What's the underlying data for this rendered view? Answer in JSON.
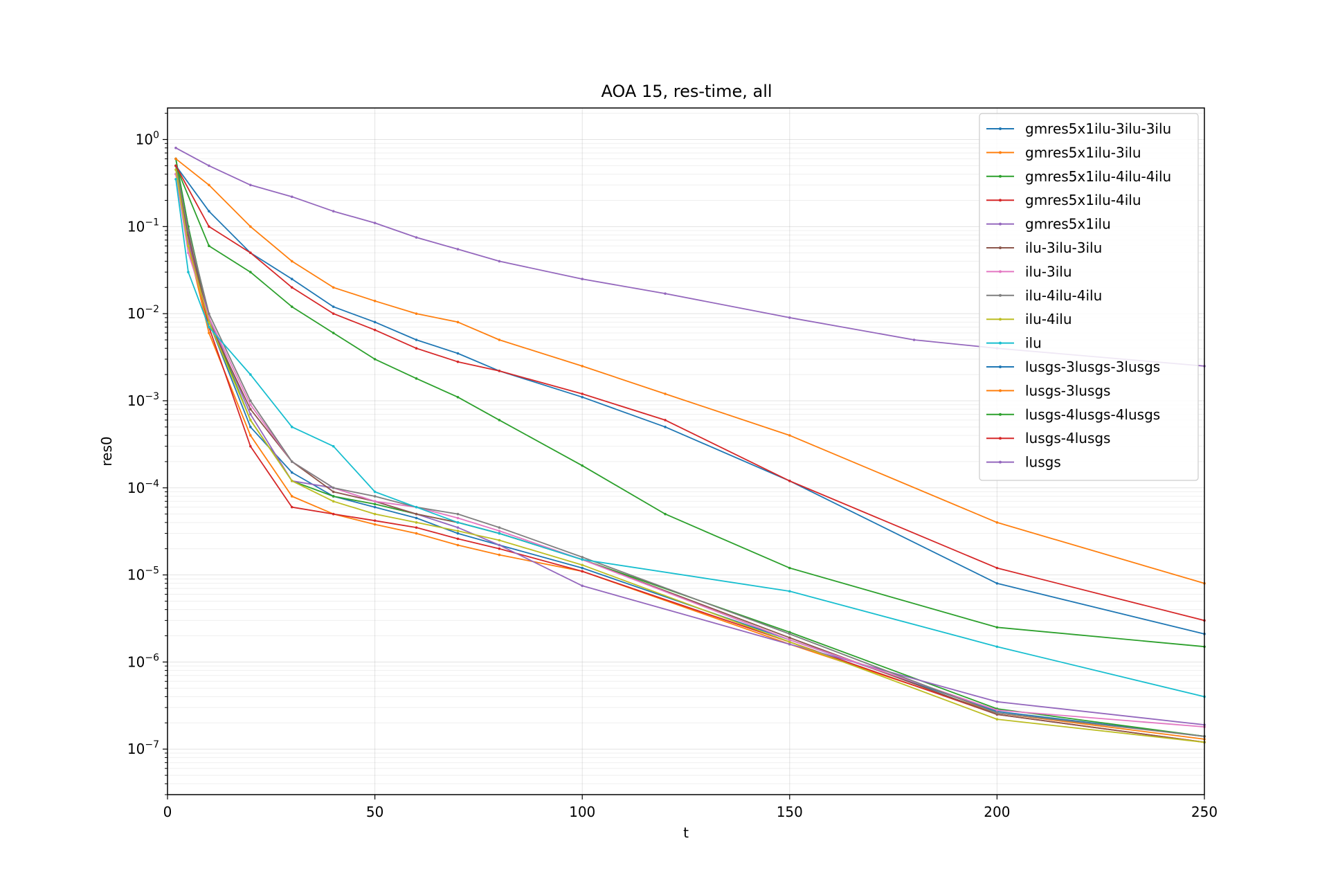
{
  "chart_data": {
    "type": "line",
    "title": "AOA 15, res-time, all",
    "xlabel": "t",
    "ylabel": "res0",
    "xlim": [
      0,
      250
    ],
    "ylim": [
      3e-08,
      2.3
    ],
    "yscale": "log",
    "grid": true,
    "legend_position": "top-right",
    "x_ticks": [
      0,
      50,
      100,
      150,
      200,
      250
    ],
    "y_ticks": [
      {
        "value": 1,
        "base": "10",
        "exp": "0"
      },
      {
        "value": 0.1,
        "base": "10",
        "exp": "−1"
      },
      {
        "value": 0.01,
        "base": "10",
        "exp": "−2"
      },
      {
        "value": 0.001,
        "base": "10",
        "exp": "−3"
      },
      {
        "value": 0.0001,
        "base": "10",
        "exp": "−4"
      },
      {
        "value": 1e-05,
        "base": "10",
        "exp": "−5"
      },
      {
        "value": 1e-06,
        "base": "10",
        "exp": "−6"
      },
      {
        "value": 1e-07,
        "base": "10",
        "exp": "−7"
      }
    ],
    "series": [
      {
        "name": "gmres5x1ilu-3ilu-3ilu",
        "color": "#1f77b4",
        "x": [
          2,
          5,
          10,
          20,
          30,
          40,
          50,
          60,
          70,
          80,
          100,
          150,
          200,
          250
        ],
        "y": [
          0.6,
          0.1,
          0.008,
          0.0005,
          0.00015,
          8e-05,
          6e-05,
          4.5e-05,
          3e-05,
          2.2e-05,
          1.2e-05,
          1.8e-06,
          2.7e-07,
          1.4e-07
        ]
      },
      {
        "name": "gmres5x1ilu-3ilu",
        "color": "#ff7f0e",
        "x": [
          2,
          5,
          10,
          20,
          30,
          40,
          50,
          60,
          70,
          80,
          100,
          150,
          200,
          250
        ],
        "y": [
          0.5,
          0.06,
          0.006,
          0.0004,
          8e-05,
          5e-05,
          3.8e-05,
          3e-05,
          2.2e-05,
          1.7e-05,
          1.1e-05,
          1.6e-06,
          2.6e-07,
          1.3e-07
        ]
      },
      {
        "name": "gmres5x1ilu-4ilu-4ilu",
        "color": "#2ca02c",
        "x": [
          2,
          5,
          10,
          20,
          30,
          40,
          50,
          60,
          70,
          80,
          100,
          150,
          200,
          250
        ],
        "y": [
          0.6,
          0.1,
          0.009,
          0.0006,
          0.00012,
          8e-05,
          6.5e-05,
          5e-05,
          4e-05,
          3e-05,
          1.5e-05,
          2.2e-06,
          2.9e-07,
          1.4e-07
        ]
      },
      {
        "name": "gmres5x1ilu-4ilu",
        "color": "#d62728",
        "x": [
          2,
          5,
          10,
          20,
          30,
          40,
          50,
          60,
          70,
          80,
          100,
          150,
          200,
          250
        ],
        "y": [
          0.5,
          0.07,
          0.007,
          0.0003,
          6e-05,
          5e-05,
          4.2e-05,
          3.5e-05,
          2.6e-05,
          2e-05,
          1.1e-05,
          1.7e-06,
          2.5e-07,
          1.2e-07
        ]
      },
      {
        "name": "gmres5x1ilu",
        "color": "#9467bd",
        "x": [
          2,
          5,
          10,
          20,
          30,
          40,
          50,
          60,
          70,
          80,
          100,
          150,
          200,
          250
        ],
        "y": [
          0.4,
          0.07,
          0.009,
          0.0007,
          0.00012,
          0.0001,
          7e-05,
          5e-05,
          3.5e-05,
          2.2e-05,
          7.5e-06,
          1.6e-06,
          3.5e-07,
          1.9e-07
        ]
      },
      {
        "name": "ilu-3ilu-3ilu",
        "color": "#8c564b",
        "x": [
          2,
          5,
          10,
          20,
          30,
          40,
          50,
          60,
          70,
          80,
          100,
          150,
          200,
          250
        ],
        "y": [
          0.5,
          0.08,
          0.008,
          0.0008,
          0.0002,
          9e-05,
          7e-05,
          5e-05,
          4e-05,
          3e-05,
          1.5e-05,
          1.9e-06,
          2.5e-07,
          1.2e-07
        ]
      },
      {
        "name": "ilu-3ilu",
        "color": "#e377c2",
        "x": [
          2,
          5,
          10,
          20,
          30,
          40,
          50,
          60,
          70,
          80,
          100,
          150,
          200,
          250
        ],
        "y": [
          0.4,
          0.05,
          0.009,
          0.0009,
          0.0002,
          0.0001,
          7e-05,
          6e-05,
          4.5e-05,
          3.2e-05,
          1.5e-05,
          1.8e-06,
          2.8e-07,
          1.8e-07
        ]
      },
      {
        "name": "ilu-4ilu-4ilu",
        "color": "#7f7f7f",
        "x": [
          2,
          5,
          10,
          20,
          30,
          40,
          50,
          60,
          70,
          80,
          100,
          150,
          200,
          250
        ],
        "y": [
          0.5,
          0.09,
          0.01,
          0.001,
          0.0002,
          0.0001,
          8e-05,
          6e-05,
          5e-05,
          3.5e-05,
          1.6e-05,
          2.1e-06,
          2.6e-07,
          1.4e-07
        ]
      },
      {
        "name": "ilu-4ilu",
        "color": "#bcbd22",
        "x": [
          2,
          5,
          10,
          20,
          30,
          40,
          50,
          60,
          70,
          80,
          100,
          150,
          200,
          250
        ],
        "y": [
          0.45,
          0.06,
          0.008,
          0.0006,
          0.00012,
          7e-05,
          5e-05,
          4e-05,
          3.2e-05,
          2.5e-05,
          1.3e-05,
          1.7e-06,
          2.2e-07,
          1.2e-07
        ]
      },
      {
        "name": "ilu",
        "color": "#17becf",
        "x": [
          2,
          5,
          10,
          20,
          30,
          40,
          50,
          60,
          70,
          80,
          100,
          150,
          200,
          250
        ],
        "y": [
          0.35,
          0.03,
          0.007,
          0.002,
          0.0005,
          0.0003,
          9e-05,
          6e-05,
          4e-05,
          3e-05,
          1.5e-05,
          6.5e-06,
          1.5e-06,
          4e-07
        ]
      },
      {
        "name": "lusgs-3lusgs-3lusgs",
        "color": "#1f77b4",
        "x": [
          2,
          10,
          20,
          30,
          40,
          50,
          60,
          70,
          80,
          100,
          120,
          150,
          200,
          250
        ],
        "y": [
          0.5,
          0.15,
          0.05,
          0.025,
          0.012,
          0.008,
          0.005,
          0.0035,
          0.0022,
          0.0011,
          0.0005,
          0.00012,
          8e-06,
          2.1e-06
        ]
      },
      {
        "name": "lusgs-3lusgs",
        "color": "#ff7f0e",
        "x": [
          2,
          10,
          20,
          30,
          40,
          50,
          60,
          70,
          80,
          100,
          120,
          150,
          200,
          250
        ],
        "y": [
          0.6,
          0.3,
          0.1,
          0.04,
          0.02,
          0.014,
          0.01,
          0.008,
          0.005,
          0.0025,
          0.0012,
          0.0004,
          4e-05,
          8e-06
        ]
      },
      {
        "name": "lusgs-4lusgs-4lusgs",
        "color": "#2ca02c",
        "x": [
          2,
          10,
          20,
          30,
          40,
          50,
          60,
          70,
          80,
          100,
          120,
          150,
          200,
          250
        ],
        "y": [
          0.5,
          0.06,
          0.03,
          0.012,
          0.006,
          0.003,
          0.0018,
          0.0011,
          0.0006,
          0.00018,
          5e-05,
          1.2e-05,
          2.5e-06,
          1.5e-06
        ]
      },
      {
        "name": "lusgs-4lusgs",
        "color": "#d62728",
        "x": [
          2,
          10,
          20,
          30,
          40,
          50,
          60,
          70,
          80,
          100,
          120,
          150,
          200,
          250
        ],
        "y": [
          0.5,
          0.1,
          0.05,
          0.02,
          0.01,
          0.0065,
          0.004,
          0.0028,
          0.0022,
          0.0012,
          0.0006,
          0.00012,
          1.2e-05,
          3e-06
        ]
      },
      {
        "name": "lusgs",
        "color": "#9467bd",
        "x": [
          2,
          10,
          20,
          30,
          40,
          50,
          60,
          70,
          80,
          100,
          120,
          150,
          180,
          200,
          250
        ],
        "y": [
          0.8,
          0.5,
          0.3,
          0.22,
          0.15,
          0.11,
          0.075,
          0.055,
          0.04,
          0.025,
          0.017,
          0.009,
          0.005,
          0.004,
          0.0025
        ]
      }
    ]
  }
}
